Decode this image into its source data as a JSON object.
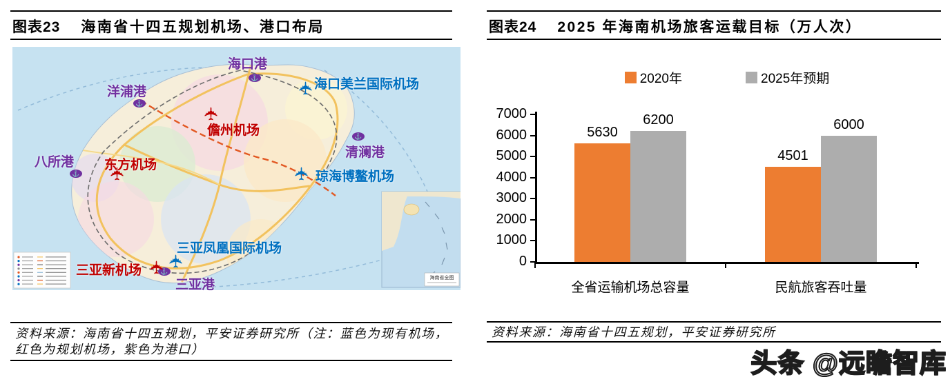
{
  "left_panel": {
    "label": "图表23",
    "title": "海南省十四五规划机场、港口布局",
    "source_note": "资料来源：海南省十四五规划，平安证券研究所（注：蓝色为现有机场，红色为规划机场，紫色为港口）",
    "map": {
      "inset_label": "海南省全图",
      "icons": {
        "anchor": "⚓",
        "airplane": "✈"
      },
      "colors": {
        "port": "#7030A0",
        "existing_airport": "#0070C0",
        "planned_airport": "#C00000"
      },
      "ports": [
        {
          "name": "海口港",
          "icon": [
            342,
            39
          ],
          "label": [
            312,
            10
          ]
        },
        {
          "name": "洋浦港",
          "icon": [
            175,
            76
          ],
          "label": [
            137,
            50
          ]
        },
        {
          "name": "八所港",
          "icon": [
            83,
            178
          ],
          "label": [
            32,
            152
          ]
        },
        {
          "name": "清澜港",
          "icon": [
            492,
            124
          ],
          "label": [
            482,
            138
          ]
        },
        {
          "name": "三亚港",
          "icon": [
            211,
            320
          ],
          "label": [
            236,
            330
          ]
        }
      ],
      "existing_airports": [
        {
          "name": "海口美兰国际机场",
          "icon": [
            410,
            45
          ],
          "label": [
            437,
            39
          ]
        },
        {
          "name": "琼海博鳌机场",
          "icon": [
            404,
            169
          ],
          "label": [
            439,
            173
          ]
        },
        {
          "name": "三亚凤凰国际机场",
          "icon": [
            222,
            296
          ],
          "label": [
            238,
            277
          ]
        }
      ],
      "planned_airports": [
        {
          "name": "儋州机场",
          "icon": [
            273,
            82
          ],
          "label": [
            282,
            106
          ]
        },
        {
          "name": "东方机场",
          "icon": [
            137,
            169
          ],
          "label": [
            133,
            156
          ]
        },
        {
          "name": "三亚新机场",
          "icon": [
            194,
            305
          ],
          "label": [
            92,
            309
          ]
        }
      ]
    }
  },
  "right_panel": {
    "label": "图表24",
    "title": "2025 年海南机场旅客运载目标（万人次）",
    "source_note": "资料来源：海南省十四五规划，平安证券研究所",
    "chart_data": {
      "type": "bar",
      "categories": [
        "全省运输机场总容量",
        "民航旅客吞吐量"
      ],
      "series": [
        {
          "name": "2020年",
          "color": "#ED7D31",
          "values": [
            5630,
            4501
          ]
        },
        {
          "name": "2025年预期",
          "color": "#ADADAD",
          "values": [
            6200,
            6000
          ]
        }
      ],
      "ylim": [
        0,
        7000
      ],
      "ytick_step": 1000,
      "grid": false,
      "legend_position": "top"
    }
  },
  "watermark": "头条 @远瞻智库"
}
